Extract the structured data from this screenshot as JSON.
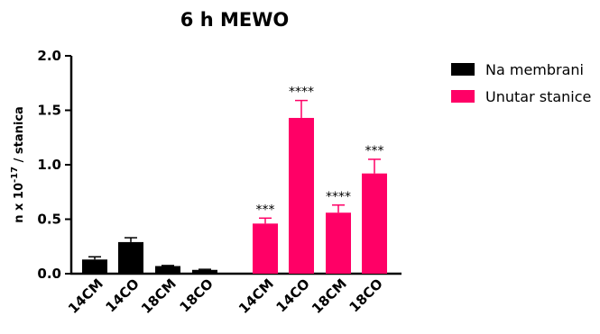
{
  "chart_data": {
    "type": "bar",
    "title": "6 h MEWO",
    "ylabel": "n x 10",
    "ylabel_exponent": "-17",
    "ylabel_suffix": " / stanica",
    "ylim": [
      0,
      2.0
    ],
    "yticks": [
      "0.0",
      "0.5",
      "1.0",
      "1.5",
      "2.0"
    ],
    "grid": false,
    "legend_position": "top-right",
    "series": [
      {
        "name": "Na membrani",
        "color": "#000000",
        "categories": [
          "14CM",
          "14CO",
          "18CM",
          "18CO"
        ],
        "values": [
          0.13,
          0.29,
          0.07,
          0.035
        ],
        "errors": [
          0.025,
          0.04,
          0.005,
          0.005
        ],
        "significance": [
          "",
          "",
          "",
          ""
        ]
      },
      {
        "name": "Unutar stanice",
        "color": "#ff0066",
        "categories": [
          "14CM",
          "14CO",
          "18CM",
          "18CO"
        ],
        "values": [
          0.46,
          1.43,
          0.56,
          0.92
        ],
        "errors": [
          0.05,
          0.16,
          0.07,
          0.13
        ],
        "significance": [
          "***",
          "****",
          "****",
          "***"
        ]
      }
    ]
  }
}
